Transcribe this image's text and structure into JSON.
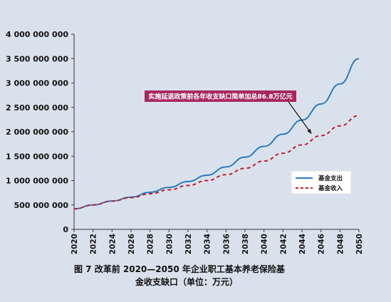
{
  "chart_data": {
    "type": "line",
    "title": "",
    "xlabel": "",
    "ylabel": "",
    "x": [
      2020,
      2022,
      2024,
      2026,
      2028,
      2030,
      2032,
      2034,
      2036,
      2038,
      2040,
      2042,
      2044,
      2046,
      2048,
      2050
    ],
    "x_ticks": [
      "2020",
      "2022",
      "2024",
      "2026",
      "2028",
      "2030",
      "2032",
      "2034",
      "2036",
      "2038",
      "2040",
      "2042",
      "2044",
      "2046",
      "2048",
      "2050"
    ],
    "ylim": [
      0,
      4000000000
    ],
    "y_ticks": [
      0,
      500000000,
      1000000000,
      1500000000,
      2000000000,
      2500000000,
      3000000000,
      3500000000,
      4000000000
    ],
    "y_tick_labels": [
      "0",
      "500 000 000",
      "1 000 000 000",
      "1 500 000 000",
      "2 000 000 000",
      "2 500 000 000",
      "3 000 000 000",
      "3 500 000 000",
      "4 000 000 000"
    ],
    "grid": false,
    "legend_position": "right",
    "series": [
      {
        "name": "基金支出",
        "color": "#2a7bc0",
        "style": "solid",
        "values": [
          420000000,
          500000000,
          580000000,
          660000000,
          760000000,
          860000000,
          980000000,
          1110000000,
          1280000000,
          1480000000,
          1700000000,
          1950000000,
          2240000000,
          2570000000,
          2980000000,
          3500000000
        ]
      },
      {
        "name": "基金收入",
        "color": "#c0202a",
        "style": "dashed",
        "values": [
          420000000,
          500000000,
          580000000,
          650000000,
          730000000,
          810000000,
          900000000,
          1000000000,
          1120000000,
          1250000000,
          1400000000,
          1560000000,
          1730000000,
          1920000000,
          2120000000,
          2330000000
        ]
      }
    ],
    "annotation": {
      "text": "实施延退政策前各年收支缺口简单加总86.8万亿元",
      "box_color": "#a8285e",
      "arrow_target": {
        "x": 2045,
        "y": 1960000000
      }
    }
  },
  "caption": {
    "line1": "图 7   改革前 2020—2050 年企业职工基本养老保险基",
    "line2": "金收支缺口（单位：万元）"
  }
}
